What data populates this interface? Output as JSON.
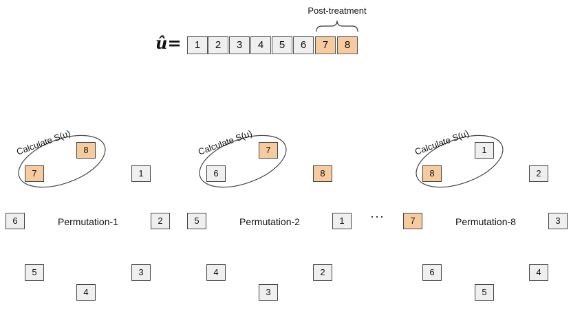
{
  "header": {
    "u_label": "û=",
    "sequence": [
      "1",
      "2",
      "3",
      "4",
      "5",
      "6",
      "7",
      "8"
    ],
    "post_treatment_label": "Post-treatment"
  },
  "calculate_label": "Calculate S(u)",
  "ellipsis": "···",
  "permutations": [
    {
      "title": "Permutation-1",
      "circle_a": "7",
      "circle_b": "8",
      "ring": [
        "1",
        "2",
        "3",
        "4",
        "5",
        "6"
      ]
    },
    {
      "title": "Permutation-2",
      "circle_a": "6",
      "circle_b": "7",
      "ring": [
        "8",
        "1",
        "2",
        "3",
        "4",
        "5"
      ]
    },
    {
      "title": "Permutation-8",
      "circle_a": "8",
      "circle_b": "1",
      "ring": [
        "2",
        "3",
        "4",
        "5",
        "6",
        "7"
      ]
    }
  ],
  "colors": {
    "highlight": "#f6cba0",
    "normal": "#efefef"
  }
}
